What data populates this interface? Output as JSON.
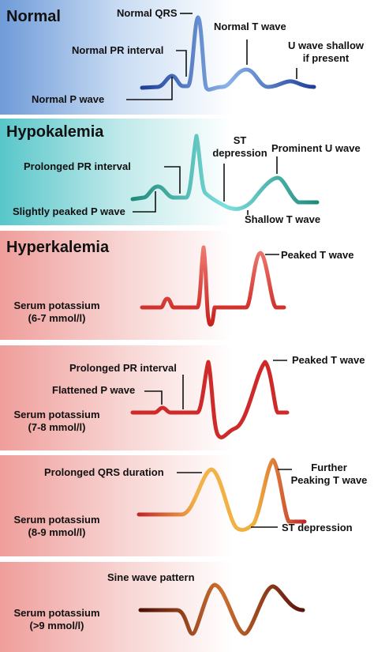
{
  "panels": {
    "normal": {
      "title": "Normal",
      "qrs": "Normal QRS",
      "pr": "Normal PR interval",
      "twave": "Normal T wave",
      "uwave_l1": "U wave shallow",
      "uwave_l2": "if present",
      "pwave": "Normal P wave",
      "color": "#3b63b8"
    },
    "hypokalemia": {
      "title": "Hypokalemia",
      "st_l1": "ST",
      "st_l2": "depression",
      "uwave": "Prominent U wave",
      "pr": "Prolonged PR interval",
      "pwave": "Slightly peaked P wave",
      "twave": "Shallow T wave",
      "color": "#2fa8a8"
    },
    "hyper1": {
      "title": "Hyperkalemia",
      "twave": "Peaked T wave",
      "serum_l1": "Serum potassium",
      "serum_l2": "(6-7 mmol/l)",
      "color": "#d9342e"
    },
    "hyper2": {
      "twave": "Peaked T wave",
      "pr": "Prolonged PR interval",
      "pwave": "Flattened P wave",
      "serum_l1": "Serum potassium",
      "serum_l2": "(7-8 mmol/l)",
      "color": "#c92a2a"
    },
    "hyper3": {
      "qrs": "Prolonged QRS duration",
      "further_l1": "Further",
      "further_l2": "Peaking T wave",
      "st": "ST depression",
      "serum_l1": "Serum potassium",
      "serum_l2": "(8-9 mmol/l)",
      "color": "#e8a040"
    },
    "hyper4": {
      "sine": "Sine wave pattern",
      "serum_l1": "Serum potassium",
      "serum_l2": "(>9 mmol/l)",
      "color": "#8a2a12"
    }
  }
}
